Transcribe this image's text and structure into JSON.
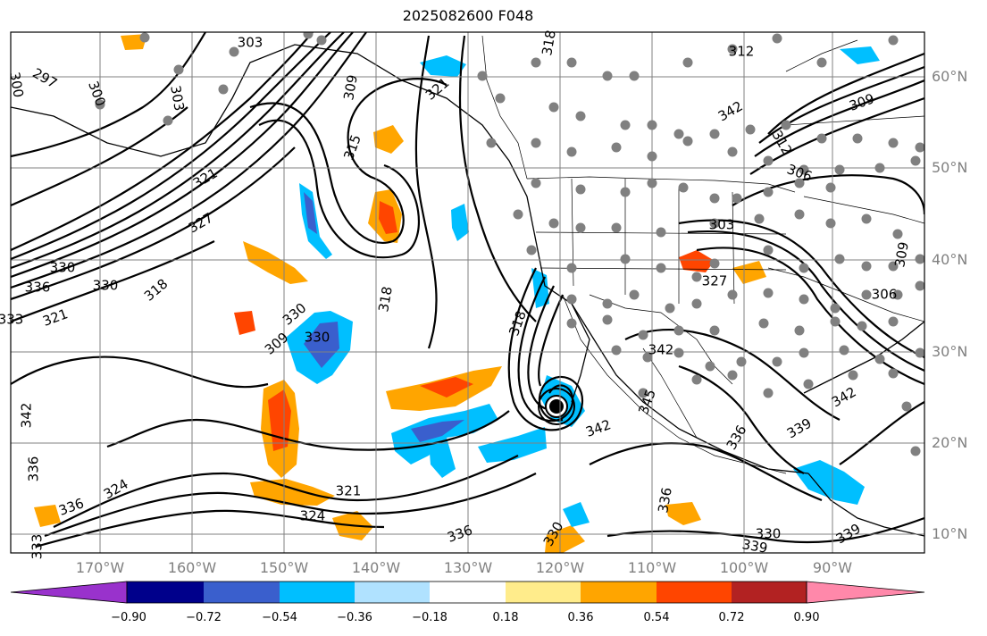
{
  "title": "2025082600 F048",
  "lat_labels": [
    "60°N",
    "50°N",
    "40°N",
    "30°N",
    "20°N",
    "10°N"
  ],
  "lon_labels": [
    "170°W",
    "160°W",
    "150°W",
    "140°W",
    "130°W",
    "120°W",
    "110°W",
    "100°W",
    "90°W"
  ],
  "colorbar": {
    "ticks": [
      "−0.90",
      "−0.72",
      "−0.54",
      "−0.36",
      "−0.18",
      "0.18",
      "0.36",
      "0.54",
      "0.72",
      "0.90"
    ],
    "colors": [
      "#9932cc",
      "#00008b",
      "#3a5fcd",
      "#00bfff",
      "#b0e2ff",
      "#ffffff",
      "#ffec8b",
      "#ffa500",
      "#ff4500",
      "#b22222",
      "#ff88aa"
    ]
  },
  "contour_labels": [
    "318",
    "297",
    "300",
    "300",
    "303",
    "309",
    "312",
    "315",
    "321",
    "321",
    "318",
    "318",
    "318",
    "309",
    "303",
    "336",
    "330",
    "321",
    "333",
    "330",
    "327",
    "321",
    "324",
    "327",
    "342",
    "345",
    "342",
    "336",
    "336",
    "330",
    "336",
    "339",
    "342",
    "342",
    "336",
    "336",
    "333",
    "330",
    "339",
    "339",
    "342",
    "312",
    "306",
    "309",
    "303",
    "324",
    "330",
    "309",
    "306",
    "330"
  ],
  "colors": {
    "frame": "#000000",
    "contour": "#000000",
    "grid": "#808080",
    "station": "#808080",
    "label": "#808080"
  }
}
